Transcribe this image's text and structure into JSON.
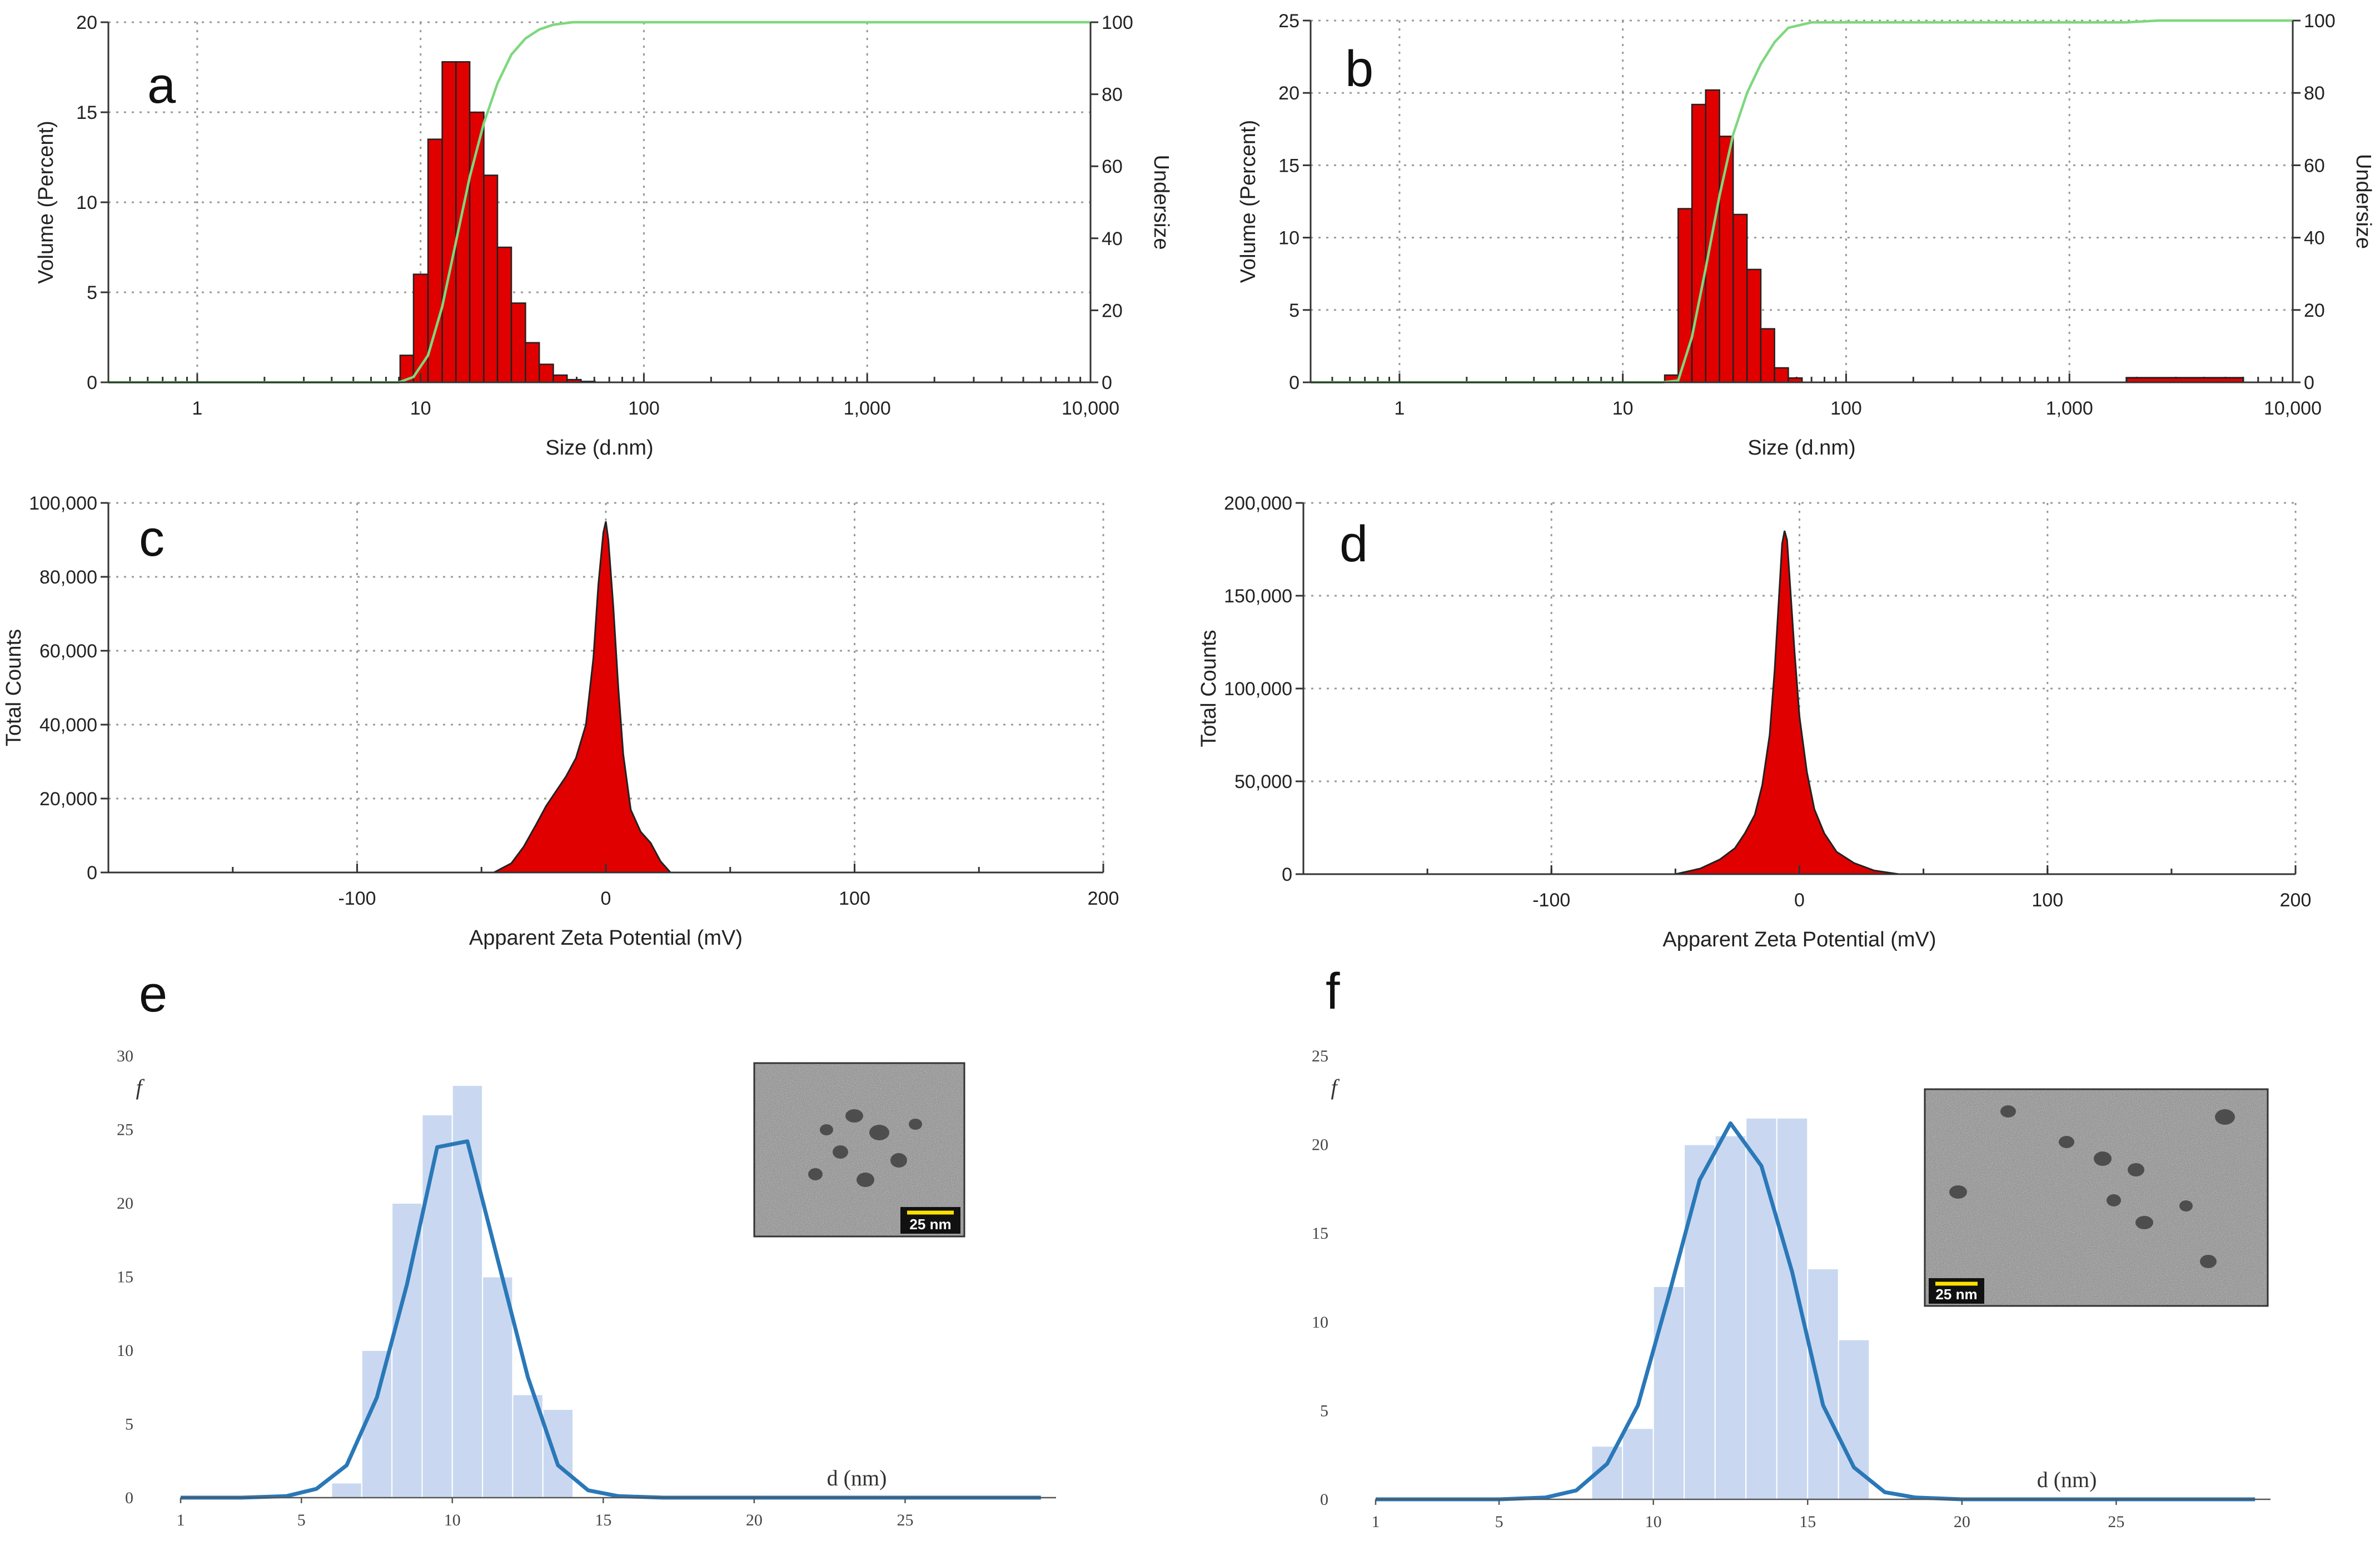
{
  "colors": {
    "bar_red": "#e00000",
    "undersize_green": "#7dd87d",
    "hist_blue_fill": "#c9d8f0",
    "fit_blue": "#2a78b8",
    "grid": "#9a9a9a"
  },
  "chart_data": [
    {
      "id": "a",
      "type": "bar",
      "panel_label": "a",
      "xlabel": "Size (d.nm)",
      "ylabel": "Volume (Percent)",
      "y2label": "Undersize",
      "xscale": "log",
      "xlim": [
        0.4,
        10000
      ],
      "ylim": [
        0,
        20
      ],
      "y2lim": [
        0,
        100
      ],
      "xticks": [
        1,
        10,
        100,
        1000,
        10000
      ],
      "xtick_labels": [
        "1",
        "10",
        "100",
        "1,000",
        "10,000"
      ],
      "yticks": [
        0,
        5,
        10,
        15,
        20
      ],
      "ytick_labels": [
        "0",
        "5",
        "10",
        "15",
        "20"
      ],
      "y2ticks": [
        0,
        20,
        40,
        60,
        80,
        100
      ],
      "y2tick_labels": [
        "0",
        "20",
        "40",
        "60",
        "80",
        "100"
      ],
      "bin_edges": [
        8.1,
        9.3,
        10.8,
        12.5,
        14.4,
        16.6,
        19.2,
        22.1,
        25.5,
        29.5,
        34.0,
        39.3,
        45.3,
        52.3,
        60.4
      ],
      "values": [
        1.5,
        6.0,
        13.5,
        17.8,
        17.8,
        15.0,
        11.5,
        7.5,
        4.4,
        2.2,
        1.0,
        0.4,
        0.15,
        0.05
      ],
      "undersize": [
        {
          "x": 0.4,
          "y": 0
        },
        {
          "x": 8,
          "y": 0
        },
        {
          "x": 9.3,
          "y": 1.5
        },
        {
          "x": 10.8,
          "y": 7.5
        },
        {
          "x": 12.5,
          "y": 21
        },
        {
          "x": 14.4,
          "y": 39
        },
        {
          "x": 16.6,
          "y": 57
        },
        {
          "x": 19.2,
          "y": 72
        },
        {
          "x": 22.1,
          "y": 83
        },
        {
          "x": 25.5,
          "y": 91
        },
        {
          "x": 29.5,
          "y": 95.5
        },
        {
          "x": 34,
          "y": 98
        },
        {
          "x": 39.3,
          "y": 99.3
        },
        {
          "x": 48,
          "y": 100
        },
        {
          "x": 10000,
          "y": 100
        }
      ]
    },
    {
      "id": "b",
      "type": "bar",
      "panel_label": "b",
      "xlabel": "Size (d.nm)",
      "ylabel": "Volume (Percent)",
      "y2label": "Undersize",
      "xscale": "log",
      "xlim": [
        0.4,
        10000
      ],
      "ylim": [
        0,
        25
      ],
      "y2lim": [
        0,
        100
      ],
      "xticks": [
        1,
        10,
        100,
        1000,
        10000
      ],
      "xtick_labels": [
        "1",
        "10",
        "100",
        "1,000",
        "10,000"
      ],
      "yticks": [
        0,
        5,
        10,
        15,
        20,
        25
      ],
      "ytick_labels": [
        "0",
        "5",
        "10",
        "15",
        "20",
        "25"
      ],
      "y2ticks": [
        0,
        20,
        40,
        60,
        80,
        100
      ],
      "y2tick_labels": [
        "0",
        "20",
        "40",
        "60",
        "80",
        "100"
      ],
      "bin_edges": [
        15.4,
        17.7,
        20.4,
        23.5,
        27.1,
        31.2,
        36.0,
        41.5,
        47.8,
        55.1,
        63.5
      ],
      "values": [
        0.5,
        12.0,
        19.2,
        20.2,
        17.0,
        11.6,
        7.8,
        3.7,
        1.0,
        0.3
      ],
      "extra_bars": {
        "bin_edges": [
          1800,
          6000
        ],
        "values": [
          0.2
        ]
      },
      "undersize": [
        {
          "x": 0.4,
          "y": 0
        },
        {
          "x": 15,
          "y": 0
        },
        {
          "x": 17.7,
          "y": 0.5
        },
        {
          "x": 20.4,
          "y": 12.5
        },
        {
          "x": 23.5,
          "y": 31.5
        },
        {
          "x": 27.1,
          "y": 51.5
        },
        {
          "x": 31.2,
          "y": 68.5
        },
        {
          "x": 36,
          "y": 80
        },
        {
          "x": 41.5,
          "y": 88
        },
        {
          "x": 47.8,
          "y": 94
        },
        {
          "x": 55.1,
          "y": 98
        },
        {
          "x": 70,
          "y": 99.5
        },
        {
          "x": 1800,
          "y": 99.5
        },
        {
          "x": 2500,
          "y": 100
        },
        {
          "x": 10000,
          "y": 100
        }
      ]
    },
    {
      "id": "c",
      "type": "area",
      "panel_label": "c",
      "xlabel": "Apparent Zeta Potential (mV)",
      "ylabel": "Total Counts",
      "xlim": [
        -200,
        200
      ],
      "ylim": [
        0,
        100000
      ],
      "xticks": [
        -100,
        0,
        100,
        200
      ],
      "xtick_labels": [
        "-100",
        "0",
        "100",
        "200"
      ],
      "yticks": [
        0,
        20000,
        40000,
        60000,
        80000,
        100000
      ],
      "ytick_labels": [
        "0",
        "20,000",
        "40,000",
        "60,000",
        "80,000",
        "100,000"
      ],
      "x": [
        -45,
        -38,
        -33,
        -28,
        -24,
        -20,
        -16,
        -12,
        -8,
        -5,
        -3,
        -1,
        0,
        1,
        3,
        5,
        7,
        10,
        14,
        18,
        22,
        26
      ],
      "y": [
        0,
        2500,
        7000,
        13000,
        18000,
        22000,
        26000,
        31000,
        40000,
        58000,
        78000,
        92000,
        95000,
        90000,
        72000,
        50000,
        32000,
        17000,
        11000,
        8000,
        3000,
        0
      ]
    },
    {
      "id": "d",
      "type": "area",
      "panel_label": "d",
      "xlabel": "Apparent Zeta Potential (mV)",
      "ylabel": "Total Counts",
      "xlim": [
        -200,
        200
      ],
      "ylim": [
        0,
        200000
      ],
      "xticks": [
        -100,
        0,
        100,
        200
      ],
      "xtick_labels": [
        "-100",
        "0",
        "100",
        "200"
      ],
      "yticks": [
        0,
        50000,
        100000,
        150000,
        200000
      ],
      "ytick_labels": [
        "0",
        "50,000",
        "100,000",
        "150,000",
        "200,000"
      ],
      "x": [
        -50,
        -40,
        -32,
        -26,
        -22,
        -18,
        -15,
        -12,
        -10,
        -8,
        -7,
        -6,
        -5,
        -4,
        -2,
        0,
        3,
        6,
        10,
        15,
        22,
        30,
        40
      ],
      "y": [
        0,
        3000,
        8000,
        14000,
        22000,
        32000,
        48000,
        75000,
        110000,
        155000,
        178000,
        185000,
        180000,
        160000,
        120000,
        85000,
        55000,
        35000,
        22000,
        12000,
        6000,
        2000,
        0
      ]
    },
    {
      "id": "e",
      "type": "bar",
      "panel_label": "e",
      "xlabel": "d (nm)",
      "ylabel": "f",
      "xlim": [
        1,
        30
      ],
      "ylim": [
        0,
        30
      ],
      "xticks": [
        1,
        5,
        10,
        15,
        20,
        25
      ],
      "xtick_labels": [
        "1",
        "5",
        "10",
        "15",
        "20",
        "25"
      ],
      "yticks": [
        0,
        5,
        10,
        15,
        20,
        25,
        30
      ],
      "ytick_labels": [
        "0",
        "5",
        "10",
        "15",
        "20",
        "25",
        "30"
      ],
      "bin_edges": [
        6,
        7,
        8,
        9,
        10,
        11,
        12,
        13,
        14
      ],
      "values": [
        1,
        10,
        20,
        26,
        28,
        15,
        7,
        6
      ],
      "fit": {
        "x": [
          1,
          3,
          4.5,
          5.5,
          6.5,
          7.5,
          8.5,
          9.5,
          10.5,
          11.5,
          12.5,
          13.5,
          14.5,
          15.5,
          17,
          20,
          25,
          29.5
        ],
        "y": [
          0,
          0,
          0.1,
          0.6,
          2.2,
          6.8,
          14.5,
          23.8,
          24.2,
          16.2,
          8.2,
          2.2,
          0.5,
          0.1,
          0,
          0,
          0,
          0
        ]
      },
      "inset": {
        "scale_label": "25 nm"
      }
    },
    {
      "id": "f",
      "type": "bar",
      "panel_label": "f",
      "xlabel": "d (nm)",
      "ylabel": "f",
      "xlim": [
        1,
        30
      ],
      "ylim": [
        0,
        25
      ],
      "xticks": [
        1,
        5,
        10,
        15,
        20,
        25
      ],
      "xtick_labels": [
        "1",
        "5",
        "10",
        "15",
        "20",
        "25"
      ],
      "yticks": [
        0,
        5,
        10,
        15,
        20,
        25
      ],
      "ytick_labels": [
        "0",
        "5",
        "10",
        "15",
        "20",
        "25"
      ],
      "bin_edges": [
        8,
        9,
        10,
        11,
        12,
        13,
        14,
        15,
        16,
        17
      ],
      "values": [
        3,
        4,
        12,
        20,
        20.5,
        21.5,
        21.5,
        13,
        9
      ],
      "fit": {
        "x": [
          1,
          5,
          6.5,
          7.5,
          8.5,
          9.5,
          10.5,
          11.5,
          12.5,
          13.5,
          14.5,
          15.5,
          16.5,
          17.5,
          18.5,
          20,
          25,
          29.5
        ],
        "y": [
          0,
          0,
          0.1,
          0.5,
          2.0,
          5.3,
          11.5,
          18.0,
          21.2,
          18.8,
          12.8,
          5.3,
          1.8,
          0.4,
          0.1,
          0,
          0,
          0
        ]
      },
      "inset": {
        "scale_label": "25 nm"
      }
    }
  ]
}
